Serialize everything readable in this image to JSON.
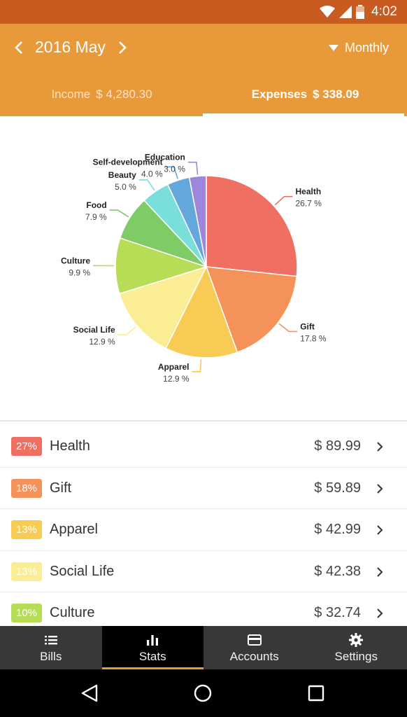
{
  "status_bar": {
    "time": "4:02",
    "icons": [
      "wifi-icon",
      "signal-icon",
      "battery-icon"
    ]
  },
  "header": {
    "period": "2016 May",
    "view_mode": "Monthly",
    "tabs": [
      {
        "label": "Income",
        "amount": "$ 4,280.30"
      },
      {
        "label": "Expenses",
        "amount": "$ 338.09"
      }
    ],
    "active_tab": "Expenses",
    "colors": {
      "status": "#c85c20",
      "bar": "#e8993a"
    }
  },
  "chart_data": {
    "type": "pie",
    "series": [
      {
        "name": "Health",
        "value": 26.7,
        "percent_label": "26.7 %",
        "color": "#ef6f62"
      },
      {
        "name": "Gift",
        "value": 17.8,
        "percent_label": "17.8 %",
        "color": "#f5925a"
      },
      {
        "name": "Apparel",
        "value": 12.9,
        "percent_label": "12.9 %",
        "color": "#f8cb55"
      },
      {
        "name": "Social Life",
        "value": 12.9,
        "percent_label": "12.9 %",
        "color": "#fbed93"
      },
      {
        "name": "Culture",
        "value": 9.9,
        "percent_label": "9.9 %",
        "color": "#b7dc56"
      },
      {
        "name": "Food",
        "value": 7.9,
        "percent_label": "7.9 %",
        "color": "#7fcb66"
      },
      {
        "name": "Beauty",
        "value": 5.0,
        "percent_label": "5.0 %",
        "color": "#7adfdb"
      },
      {
        "name": "Self-development",
        "value": 4.0,
        "percent_label": "4.0 %",
        "color": "#63a7dd"
      },
      {
        "name": "Education",
        "value": 3.0,
        "percent_label": "3.0 %",
        "color": "#9d87dc"
      }
    ]
  },
  "list": [
    {
      "percent": "27%",
      "name": "Health",
      "amount": "$ 89.99",
      "color": "#ef6f62"
    },
    {
      "percent": "18%",
      "name": "Gift",
      "amount": "$ 59.89",
      "color": "#f5925a"
    },
    {
      "percent": "13%",
      "name": "Apparel",
      "amount": "$ 42.99",
      "color": "#f8cb55"
    },
    {
      "percent": "13%",
      "name": "Social Life",
      "amount": "$ 42.38",
      "color": "#fbed93"
    },
    {
      "percent": "10%",
      "name": "Culture",
      "amount": "$ 32.74",
      "color": "#b7dc56"
    }
  ],
  "bottom_nav": [
    {
      "label": "Bills",
      "icon": "list-icon"
    },
    {
      "label": "Stats",
      "icon": "bar-chart-icon"
    },
    {
      "label": "Accounts",
      "icon": "card-icon"
    },
    {
      "label": "Settings",
      "icon": "gear-icon"
    }
  ],
  "active_nav": "Stats"
}
